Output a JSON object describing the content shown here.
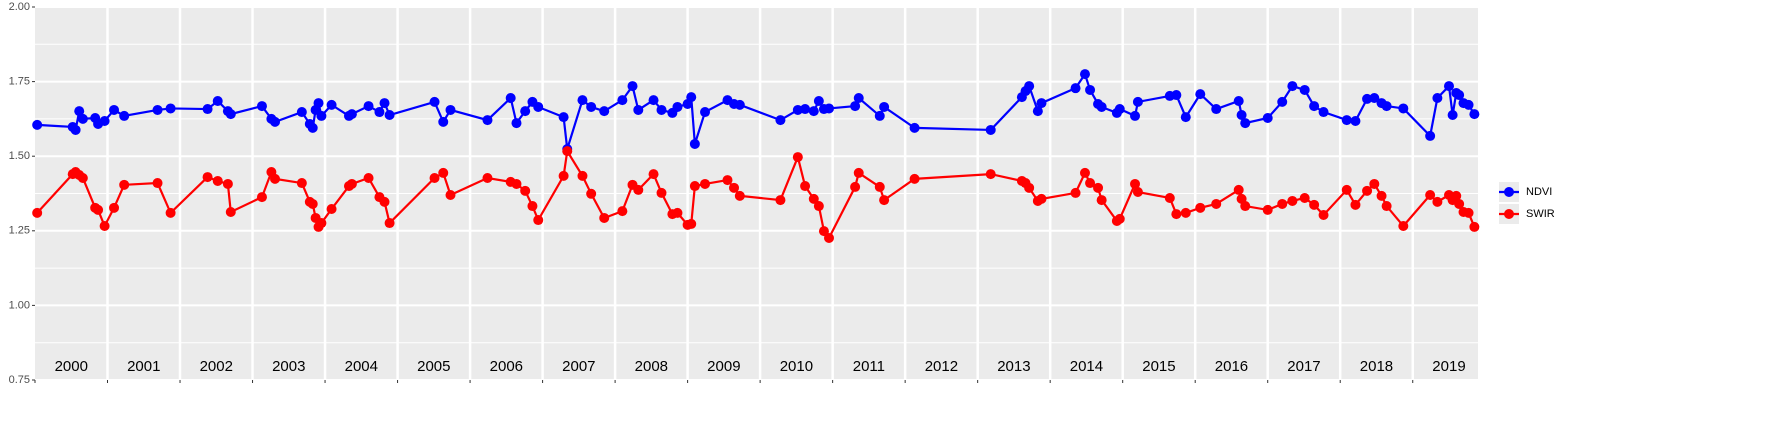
{
  "chart_data": {
    "type": "line",
    "x": [
      2000.03,
      2000.52,
      2000.56,
      2000.61,
      2000.66,
      2000.83,
      2000.87,
      2000.96,
      2001.09,
      2001.23,
      2001.69,
      2001.87,
      2002.38,
      2002.52,
      2002.66,
      2002.7,
      2003.13,
      2003.26,
      2003.31,
      2003.68,
      2003.79,
      2003.83,
      2003.87,
      2003.91,
      2003.95,
      2004.09,
      2004.33,
      2004.37,
      2004.6,
      2004.75,
      2004.82,
      2004.89,
      2005.51,
      2005.63,
      2005.73,
      2006.24,
      2006.56,
      2006.64,
      2006.76,
      2006.86,
      2006.94,
      2007.29,
      2007.34,
      2007.55,
      2007.67,
      2007.85,
      2008.1,
      2008.24,
      2008.32,
      2008.53,
      2008.64,
      2008.79,
      2008.86,
      2009.0,
      2009.05,
      2009.1,
      2009.24,
      2009.55,
      2009.64,
      2009.72,
      2010.28,
      2010.52,
      2010.62,
      2010.74,
      2010.81,
      2010.88,
      2010.95,
      2011.31,
      2011.36,
      2011.65,
      2011.71,
      2012.13,
      2013.18,
      2013.61,
      2013.66,
      2013.71,
      2013.83,
      2013.88,
      2014.35,
      2014.48,
      2014.55,
      2014.66,
      2014.71,
      2014.92,
      2014.96,
      2015.17,
      2015.21,
      2015.65,
      2015.74,
      2015.87,
      2016.07,
      2016.29,
      2016.6,
      2016.64,
      2016.69,
      2017.0,
      2017.2,
      2017.34,
      2017.51,
      2017.64,
      2017.77,
      2018.09,
      2018.21,
      2018.37,
      2018.47,
      2018.57,
      2018.64,
      2018.87,
      2019.24,
      2019.34,
      2019.5,
      2019.55,
      2019.6,
      2019.64,
      2019.7,
      2019.77,
      2019.85
    ],
    "series": [
      {
        "name": "NDVI",
        "color": "#0000ff",
        "values": [
          1.605,
          1.598,
          1.588,
          1.651,
          1.625,
          1.628,
          1.608,
          1.618,
          1.655,
          1.635,
          1.655,
          1.66,
          1.658,
          1.685,
          1.651,
          1.641,
          1.668,
          1.625,
          1.615,
          1.648,
          1.608,
          1.595,
          1.655,
          1.678,
          1.635,
          1.672,
          1.635,
          1.641,
          1.668,
          1.648,
          1.678,
          1.638,
          1.682,
          1.615,
          1.655,
          1.621,
          1.695,
          1.611,
          1.651,
          1.682,
          1.665,
          1.631,
          1.524,
          1.688,
          1.665,
          1.651,
          1.688,
          1.735,
          1.655,
          1.688,
          1.655,
          1.645,
          1.665,
          1.675,
          1.698,
          1.541,
          1.648,
          1.688,
          1.675,
          1.672,
          1.621,
          1.655,
          1.658,
          1.651,
          1.685,
          1.658,
          1.66,
          1.668,
          1.695,
          1.635,
          1.665,
          1.595,
          1.588,
          1.698,
          1.718,
          1.735,
          1.651,
          1.678,
          1.728,
          1.775,
          1.722,
          1.675,
          1.665,
          1.645,
          1.658,
          1.635,
          1.682,
          1.702,
          1.705,
          1.631,
          1.708,
          1.658,
          1.685,
          1.638,
          1.611,
          1.628,
          1.682,
          1.735,
          1.722,
          1.668,
          1.648,
          1.621,
          1.618,
          1.692,
          1.695,
          1.678,
          1.668,
          1.66,
          1.568,
          1.695,
          1.735,
          1.638,
          1.712,
          1.705,
          1.678,
          1.672,
          1.641
        ]
      },
      {
        "name": "SWIR",
        "color": "#ff0000",
        "values": [
          1.31,
          1.44,
          1.447,
          1.437,
          1.427,
          1.327,
          1.32,
          1.266,
          1.327,
          1.404,
          1.41,
          1.31,
          1.43,
          1.417,
          1.407,
          1.313,
          1.363,
          1.447,
          1.424,
          1.41,
          1.347,
          1.34,
          1.293,
          1.263,
          1.276,
          1.323,
          1.4,
          1.407,
          1.427,
          1.363,
          1.347,
          1.276,
          1.427,
          1.444,
          1.37,
          1.427,
          1.414,
          1.407,
          1.384,
          1.333,
          1.286,
          1.434,
          1.517,
          1.434,
          1.374,
          1.293,
          1.316,
          1.404,
          1.387,
          1.44,
          1.377,
          1.306,
          1.31,
          1.27,
          1.273,
          1.4,
          1.407,
          1.42,
          1.394,
          1.367,
          1.353,
          1.497,
          1.4,
          1.357,
          1.333,
          1.249,
          1.226,
          1.397,
          1.444,
          1.397,
          1.353,
          1.424,
          1.44,
          1.417,
          1.41,
          1.394,
          1.35,
          1.357,
          1.377,
          1.444,
          1.41,
          1.394,
          1.353,
          1.283,
          1.29,
          1.407,
          1.38,
          1.36,
          1.306,
          1.31,
          1.327,
          1.34,
          1.387,
          1.357,
          1.333,
          1.32,
          1.34,
          1.35,
          1.36,
          1.337,
          1.303,
          1.387,
          1.337,
          1.384,
          1.407,
          1.367,
          1.333,
          1.266,
          1.37,
          1.347,
          1.37,
          1.353,
          1.367,
          1.34,
          1.313,
          1.31,
          1.263
        ]
      }
    ],
    "xlim": [
      2000,
      2019.9
    ],
    "xticks": [
      2000,
      2001,
      2002,
      2003,
      2004,
      2005,
      2006,
      2007,
      2008,
      2009,
      2010,
      2011,
      2012,
      2013,
      2014,
      2015,
      2016,
      2017,
      2018,
      2019
    ],
    "ylim": [
      0.75,
      2.0
    ],
    "yticks": [
      {
        "value": 0.75,
        "label": "0.75"
      },
      {
        "value": 1.0,
        "label": "1.00"
      },
      {
        "value": 1.25,
        "label": "1.25"
      },
      {
        "value": 1.5,
        "label": "1.50"
      },
      {
        "value": 1.75,
        "label": "1.75"
      },
      {
        "value": 2.0,
        "label": "2.00"
      }
    ],
    "grid": true,
    "legend": "right"
  }
}
